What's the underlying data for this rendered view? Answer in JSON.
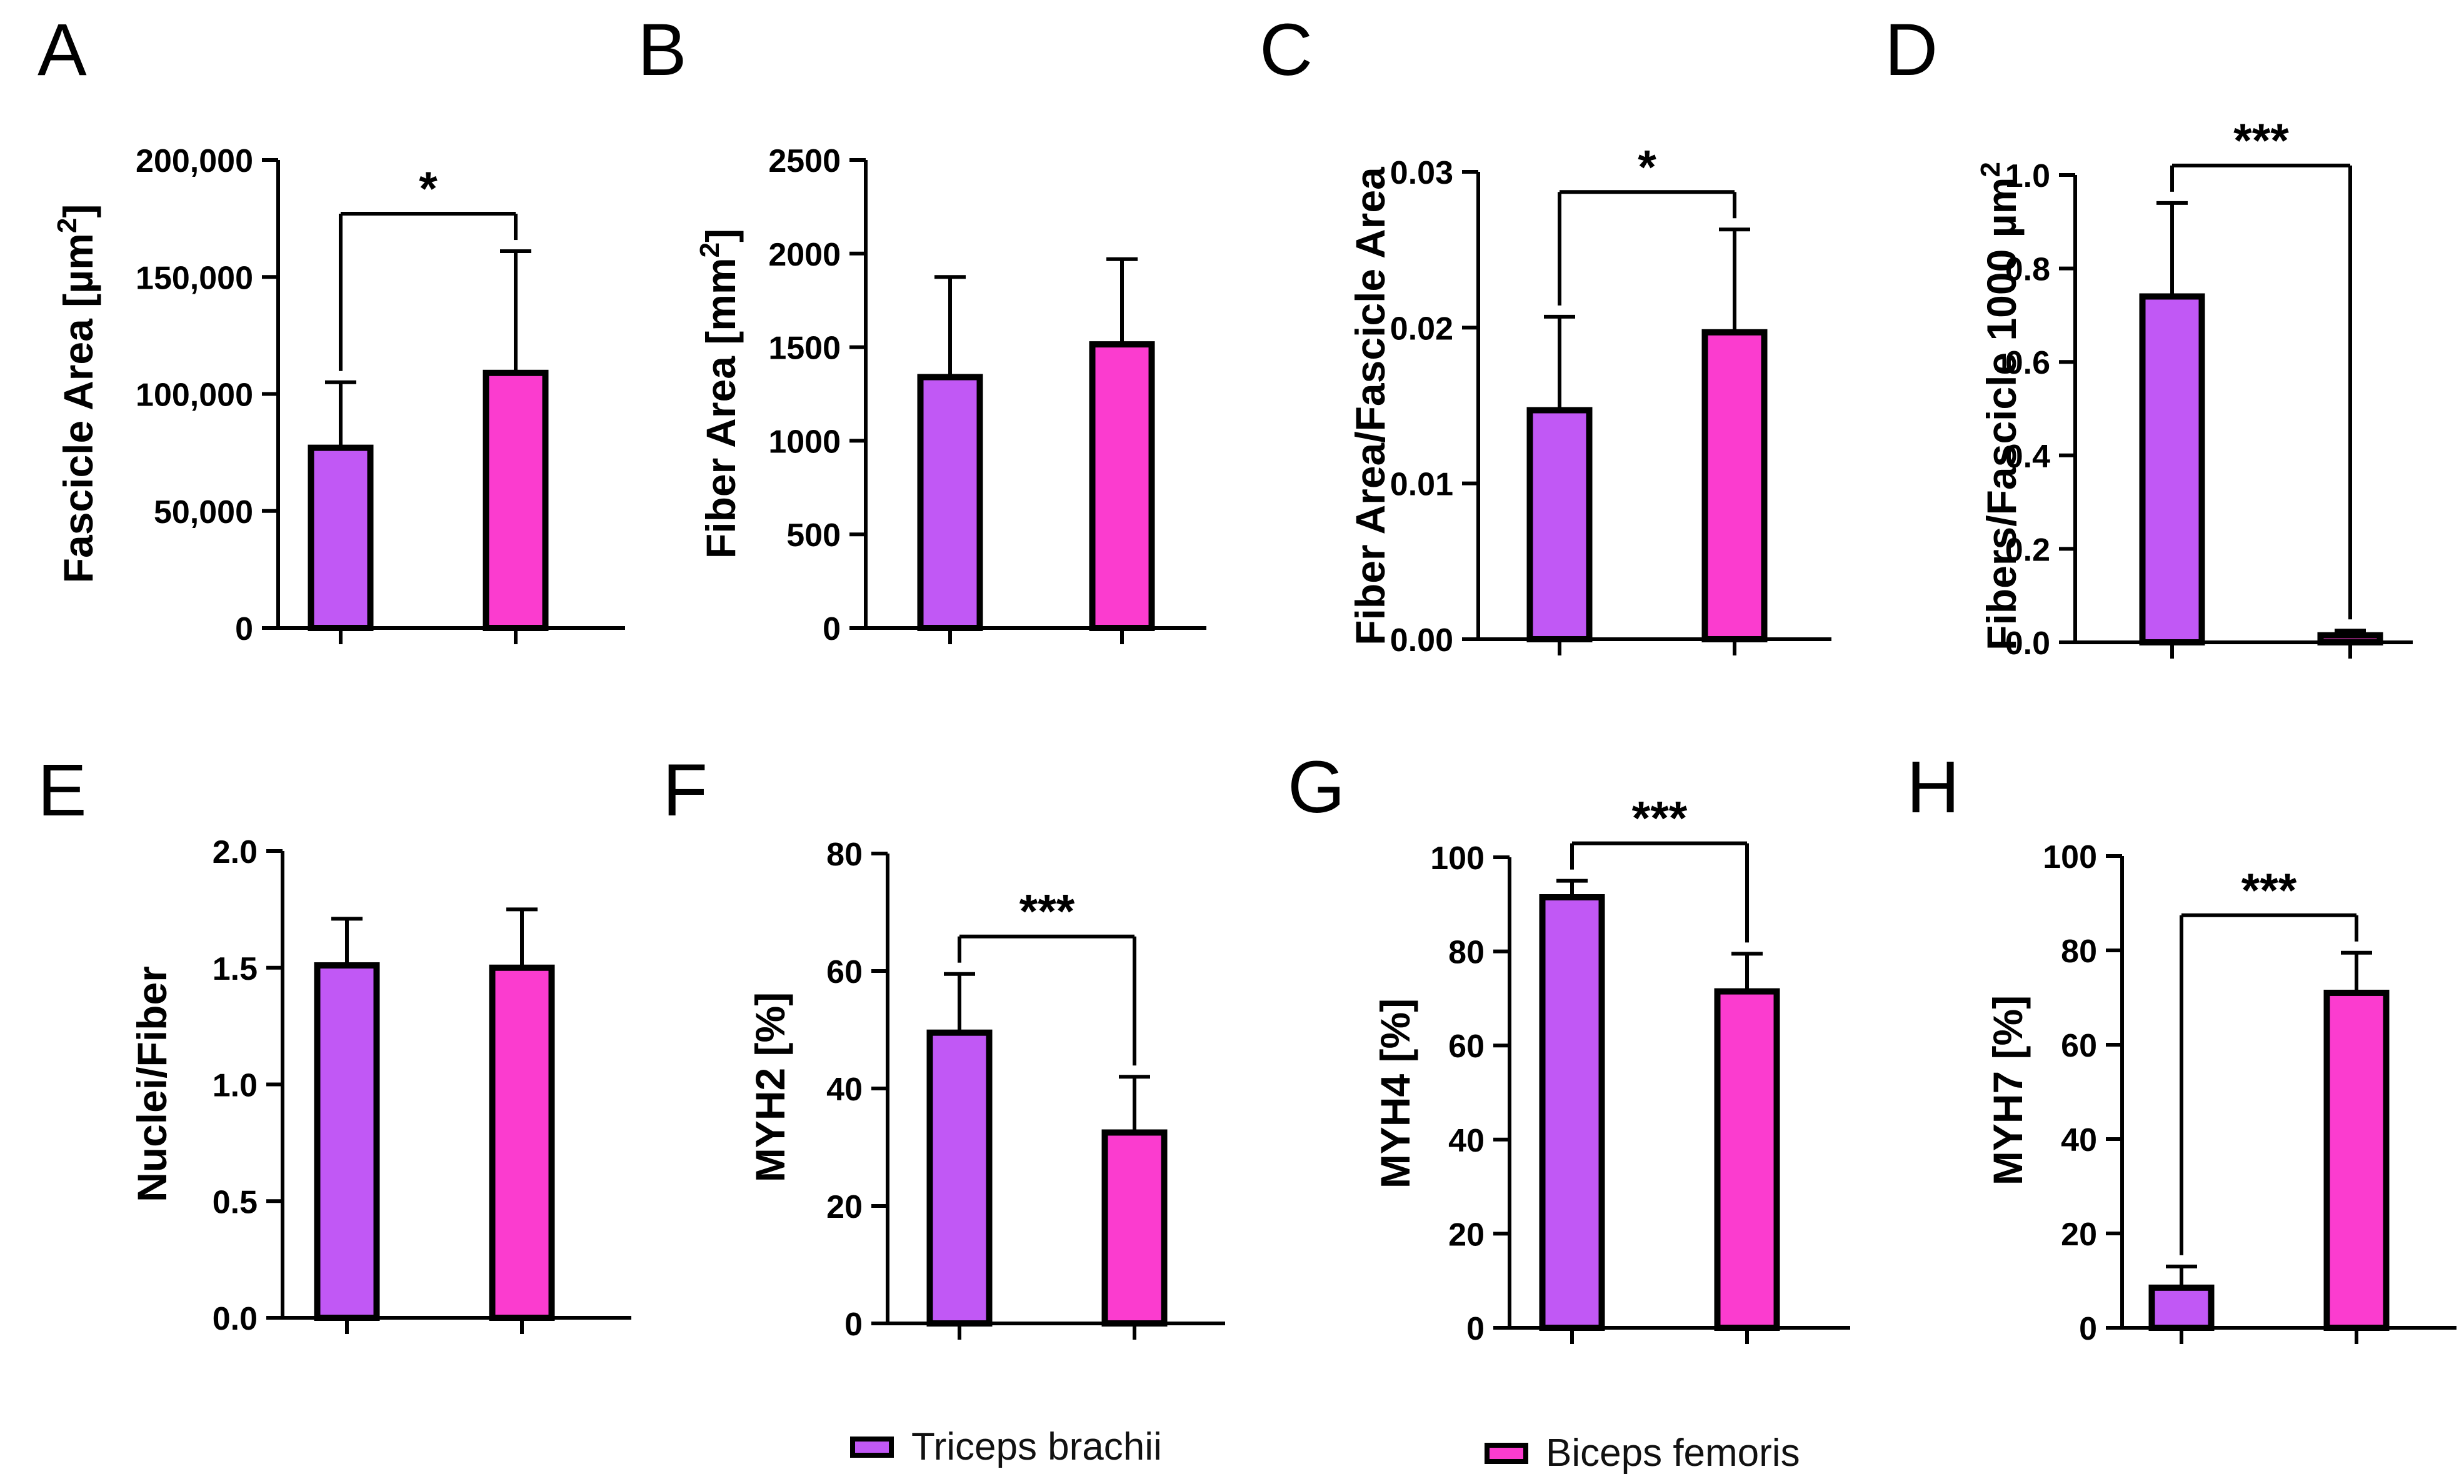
{
  "colors": {
    "triceps": "#c158f5",
    "biceps": "#fb3ccf",
    "ink": "#000000"
  },
  "legend": [
    {
      "key": "triceps",
      "label": "Triceps brachii"
    },
    {
      "key": "biceps",
      "label": "Biceps femoris"
    }
  ],
  "chart_data": [
    {
      "panel": "A",
      "type": "bar",
      "ylabel_pre": "Fascicle Area [µm",
      "ylabel_sup": "2",
      "ylabel_post": "]",
      "categories": [
        "Triceps brachii",
        "Biceps femoris"
      ],
      "values": [
        77000,
        109000
      ],
      "errors": [
        28000,
        52000
      ],
      "ylim": [
        0,
        200000
      ],
      "ticks": [
        0,
        50000,
        100000,
        150000,
        200000
      ],
      "tick_labels": [
        "0",
        "50,000",
        "100,000",
        "150,000",
        "200,000"
      ],
      "sig": "*"
    },
    {
      "panel": "B",
      "type": "bar",
      "ylabel_pre": "Fiber Area [mm",
      "ylabel_sup": "2",
      "ylabel_post": "]",
      "categories": [
        "Triceps brachii",
        "Biceps femoris"
      ],
      "values": [
        1340,
        1515
      ],
      "errors": [
        535,
        455
      ],
      "ylim": [
        0,
        2500
      ],
      "ticks": [
        0,
        500,
        1000,
        1500,
        2000,
        2500
      ],
      "tick_labels": [
        "0",
        "500",
        "1000",
        "1500",
        "2000",
        "2500"
      ],
      "sig": ""
    },
    {
      "panel": "C",
      "type": "bar",
      "ylabel_pre": "Fiber Area/Fascicle Area",
      "ylabel_sup": "",
      "ylabel_post": "",
      "categories": [
        "Triceps brachii",
        "Biceps femoris"
      ],
      "values": [
        0.0147,
        0.0197
      ],
      "errors": [
        0.006,
        0.0066
      ],
      "ylim": [
        0,
        0.03
      ],
      "ticks": [
        0,
        0.01,
        0.02,
        0.03
      ],
      "tick_labels": [
        "0.00",
        "0.01",
        "0.02",
        "0.03"
      ],
      "sig": "*"
    },
    {
      "panel": "D",
      "type": "bar",
      "ylabel_pre": "Fibers/Fascicle 1000 µm",
      "ylabel_sup": "2",
      "ylabel_post": "",
      "categories": [
        "Triceps brachii",
        "Biceps femoris"
      ],
      "values": [
        0.74,
        0.015
      ],
      "errors": [
        0.2,
        0.01
      ],
      "ylim": [
        0,
        1.0
      ],
      "ticks": [
        0,
        0.2,
        0.4,
        0.6,
        0.8,
        1.0
      ],
      "tick_labels": [
        "0.0",
        "0.2",
        "0.4",
        "0.6",
        "0.8",
        "1.0"
      ],
      "sig": "***"
    },
    {
      "panel": "E",
      "type": "bar",
      "ylabel_pre": "Nuclei/Fiber",
      "ylabel_sup": "",
      "ylabel_post": "",
      "categories": [
        "Triceps brachii",
        "Biceps femoris"
      ],
      "values": [
        1.51,
        1.5
      ],
      "errors": [
        0.2,
        0.25
      ],
      "ylim": [
        0,
        2.0
      ],
      "ticks": [
        0,
        0.5,
        1.0,
        1.5,
        2.0
      ],
      "tick_labels": [
        "0.0",
        "0.5",
        "1.0",
        "1.5",
        "2.0"
      ],
      "sig": ""
    },
    {
      "panel": "F",
      "type": "bar",
      "ylabel_pre": "MYH2 [%]",
      "ylabel_sup": "",
      "ylabel_post": "",
      "categories": [
        "Triceps brachii",
        "Biceps femoris"
      ],
      "values": [
        49.5,
        32.5
      ],
      "errors": [
        10,
        9.5
      ],
      "ylim": [
        0,
        80
      ],
      "ticks": [
        0,
        20,
        40,
        60,
        80
      ],
      "tick_labels": [
        "0",
        "20",
        "40",
        "60",
        "80"
      ],
      "sig": "***"
    },
    {
      "panel": "G",
      "type": "bar",
      "ylabel_pre": "MYH4 [%]",
      "ylabel_sup": "",
      "ylabel_post": "",
      "categories": [
        "Triceps brachii",
        "Biceps femoris"
      ],
      "values": [
        91.5,
        71.5
      ],
      "errors": [
        3.5,
        8
      ],
      "ylim": [
        0,
        100
      ],
      "ticks": [
        0,
        20,
        40,
        60,
        80,
        100
      ],
      "tick_labels": [
        "0",
        "20",
        "40",
        "60",
        "80",
        "100"
      ],
      "sig": "***"
    },
    {
      "panel": "H",
      "type": "bar",
      "ylabel_pre": "MYH7 [%]",
      "ylabel_sup": "",
      "ylabel_post": "",
      "categories": [
        "Triceps brachii",
        "Biceps femoris"
      ],
      "values": [
        8.5,
        71
      ],
      "errors": [
        4.5,
        8.5
      ],
      "ylim": [
        0,
        100
      ],
      "ticks": [
        0,
        20,
        40,
        60,
        80,
        100
      ],
      "tick_labels": [
        "0",
        "20",
        "40",
        "60",
        "80",
        "100"
      ],
      "sig": "***"
    }
  ]
}
